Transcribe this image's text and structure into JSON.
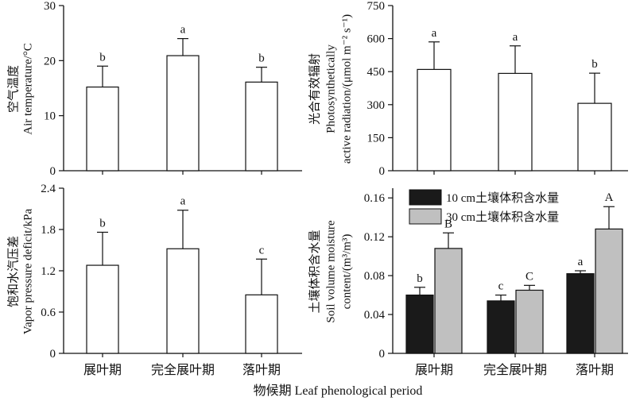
{
  "figure": {
    "xlabel": "物候期 Leaf phenological  period"
  },
  "chart_data": [
    {
      "id": "air-temperature",
      "type": "bar",
      "ylabel_cn": "空气温度",
      "ylabel_en": "Air temperature/°C",
      "categories": [
        "展叶期",
        "完全展叶期",
        "落叶期"
      ],
      "ylim": [
        0,
        30
      ],
      "yticks": [
        0,
        10,
        20,
        30
      ],
      "series": [
        {
          "values": [
            15.2,
            20.9,
            16.1
          ],
          "errors": [
            3.8,
            3.1,
            2.7
          ],
          "letters": [
            "b",
            "a",
            "b"
          ],
          "color": "#ffffff"
        }
      ]
    },
    {
      "id": "par",
      "type": "bar",
      "ylabel_cn": "光合有效辐射",
      "ylabel_en": "Photosynthetically",
      "ylabel_en2": "active radiation/(μmol m⁻² s⁻¹)",
      "categories": [
        "展叶期",
        "完全展叶期",
        "落叶期"
      ],
      "ylim": [
        0,
        750
      ],
      "yticks": [
        0,
        150,
        300,
        450,
        600,
        750
      ],
      "series": [
        {
          "values": [
            460,
            442,
            306
          ],
          "errors": [
            125,
            125,
            137
          ],
          "letters": [
            "a",
            "a",
            "b"
          ],
          "color": "#ffffff"
        }
      ]
    },
    {
      "id": "vpd",
      "type": "bar",
      "ylabel_cn": "饱和水汽压差",
      "ylabel_en": "Vapor pressure deficit/kPa",
      "categories": [
        "展叶期",
        "完全展叶期",
        "落叶期"
      ],
      "ylim": [
        0,
        2.4
      ],
      "yticks": [
        0,
        0.6,
        1.2,
        1.8,
        2.4
      ],
      "ytick_labels": [
        "0",
        "0.6",
        "1.2",
        "1.8",
        "2.4"
      ],
      "series": [
        {
          "values": [
            1.28,
            1.52,
            0.85
          ],
          "errors": [
            0.48,
            0.56,
            0.52
          ],
          "letters": [
            "b",
            "a",
            "c"
          ],
          "color": "#ffffff"
        }
      ]
    },
    {
      "id": "soil-moisture",
      "type": "bar",
      "ylabel_cn": "土壤体积含水量",
      "ylabel_en": "Soil volume moisture",
      "ylabel_en2": "content/(m³/m³)",
      "categories": [
        "展叶期",
        "完全展叶期",
        "落叶期"
      ],
      "ylim": [
        0,
        0.17
      ],
      "yticks": [
        0,
        0.04,
        0.08,
        0.12,
        0.16
      ],
      "ytick_labels": [
        "0",
        "0.04",
        "0.08",
        "0.12",
        "0.16"
      ],
      "legend_position": "top-left",
      "series": [
        {
          "name": "10 cm土壤体积含水量",
          "values": [
            0.06,
            0.054,
            0.082
          ],
          "errors": [
            0.008,
            0.006,
            0.003
          ],
          "letters": [
            "b",
            "c",
            "a"
          ],
          "color": "#1a1a1a"
        },
        {
          "name": "30 cm土壤体积含水量",
          "values": [
            0.108,
            0.065,
            0.128
          ],
          "errors": [
            0.016,
            0.005,
            0.023
          ],
          "letters": [
            "B",
            "C",
            "A"
          ],
          "color": "#c0c0c0"
        }
      ]
    }
  ]
}
